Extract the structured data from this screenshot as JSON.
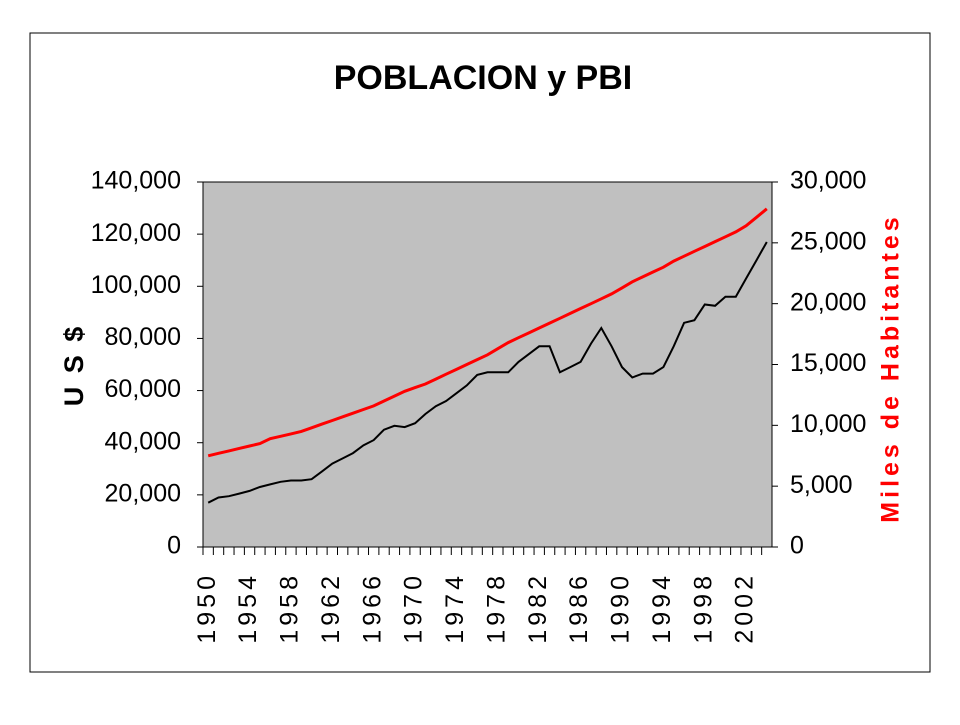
{
  "chart_data": {
    "type": "line",
    "title": "POBLACION y PBI",
    "ylabel": "U S $",
    "y2label": "Miles de Habitantes",
    "categories": [
      "1950",
      null,
      null,
      null,
      "1954",
      null,
      null,
      null,
      "1958",
      null,
      null,
      null,
      "1962",
      null,
      null,
      null,
      "1966",
      null,
      null,
      null,
      "1970",
      null,
      null,
      null,
      "1974",
      null,
      null,
      null,
      "1978",
      null,
      null,
      null,
      "1982",
      null,
      null,
      null,
      "1986",
      null,
      null,
      null,
      "1990",
      null,
      null,
      null,
      "1994",
      null,
      null,
      null,
      "1998",
      null,
      null,
      null,
      "2002",
      null,
      null
    ],
    "series": [
      {
        "color": "#000000",
        "values": [
          17000,
          19000,
          19500,
          20500,
          21500,
          23000,
          24000,
          25000,
          25500,
          25500,
          26000,
          29000,
          32000,
          34000,
          36000,
          39000,
          41000,
          45000,
          46500,
          46000,
          47500,
          51000,
          54000,
          56000,
          59000,
          62000,
          66000,
          67000,
          67000,
          67000,
          71000,
          74000,
          77000,
          77000,
          67000,
          69000,
          71000,
          78000,
          84000,
          77000,
          69000,
          65000,
          66500,
          66500,
          69000,
          77000,
          86000,
          87000,
          93000,
          92500,
          96000,
          96000,
          103000,
          110000,
          117000
        ]
      },
      {
        "color": "#ff0000",
        "axis": "y2",
        "values": [
          7500,
          7700,
          7900,
          8100,
          8300,
          8500,
          8900,
          9100,
          9300,
          9500,
          9800,
          10100,
          10400,
          10700,
          11000,
          11300,
          11600,
          12000,
          12400,
          12800,
          13100,
          13400,
          13800,
          14200,
          14600,
          15000,
          15400,
          15800,
          16300,
          16800,
          17200,
          17600,
          18000,
          18400,
          18800,
          19200,
          19600,
          20000,
          20400,
          20800,
          21300,
          21800,
          22200,
          22600,
          23000,
          23500,
          23900,
          24300,
          24700,
          25100,
          25500,
          25900,
          26400,
          27100,
          27800
        ]
      }
    ],
    "ylim": [
      0,
      140000
    ],
    "yticks": [
      0,
      {
        "value": 20000,
        "label": "20,000"
      },
      {
        "value": 40000,
        "label": "40,000"
      },
      {
        "value": 60000,
        "label": "60,000"
      },
      {
        "value": 80000,
        "label": "80,000"
      },
      {
        "value": 100000,
        "label": "100,000"
      },
      {
        "value": 120000,
        "label": "120,000"
      },
      {
        "value": 140000,
        "label": "140,000"
      }
    ],
    "y2lim": [
      0,
      30000
    ],
    "y2ticks": [
      0,
      {
        "value": 5000,
        "label": "5,000"
      },
      {
        "value": 10000,
        "label": "10,000"
      },
      {
        "value": 15000,
        "label": "15,000"
      },
      {
        "value": 20000,
        "label": "20,000"
      },
      {
        "value": 25000,
        "label": "25,000"
      },
      {
        "value": 30000,
        "label": "30,000"
      }
    ],
    "plot_background": "#c0c0c0",
    "y2label_color": "#ff0000"
  }
}
